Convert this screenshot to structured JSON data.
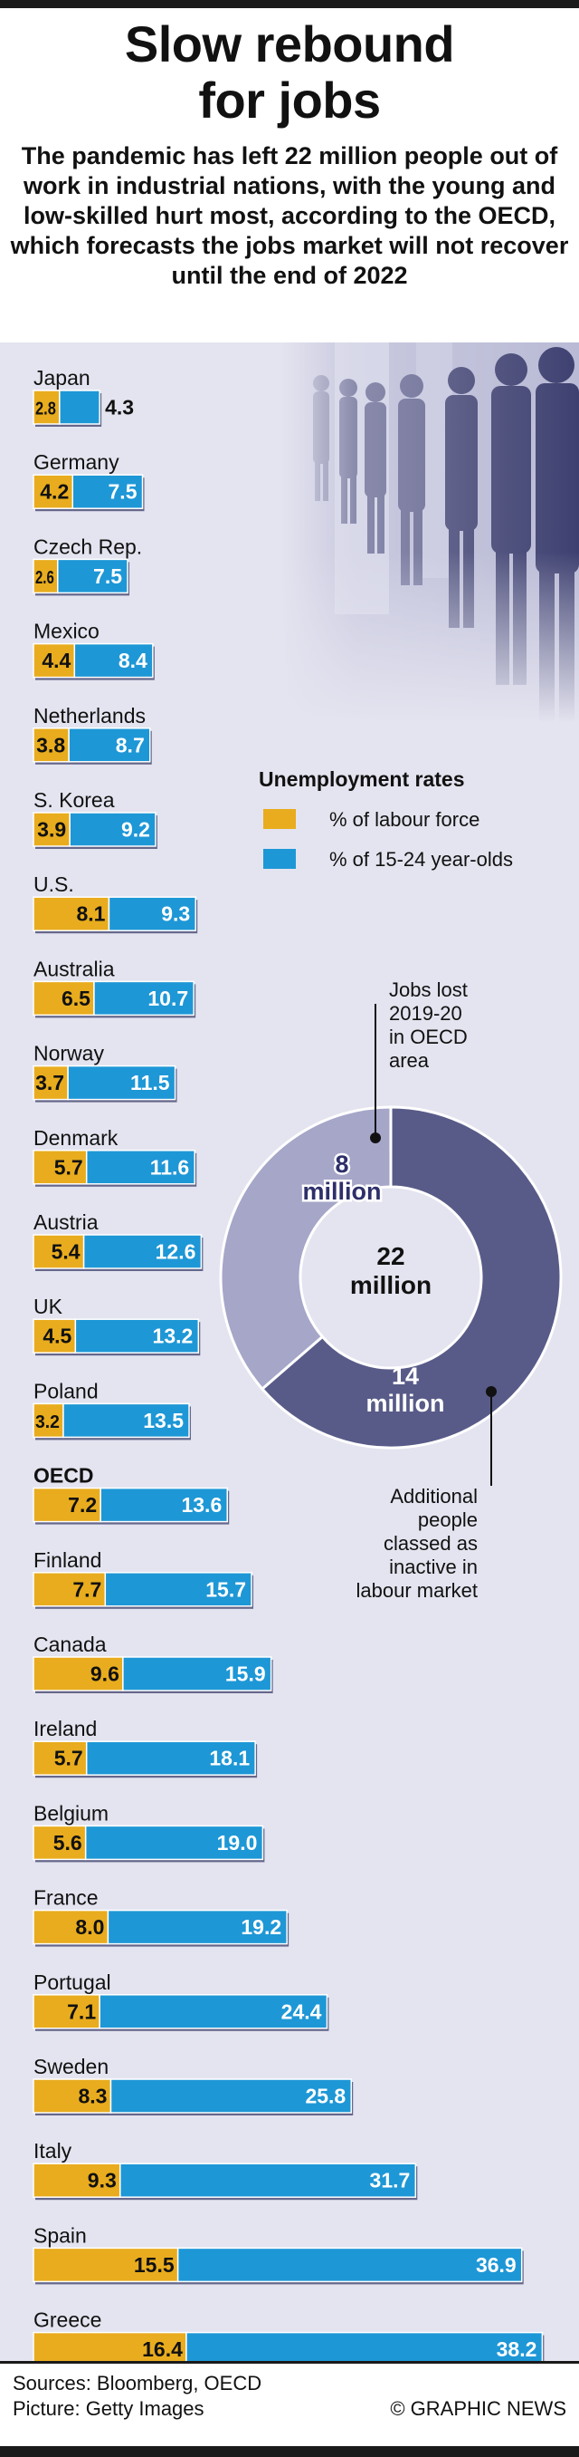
{
  "header": {
    "title_line1": "Slow rebound",
    "title_line2": "for jobs",
    "subtitle": "The pandemic has left 22 million people out of work in industrial nations, with the young and low-skilled hurt most, according to the OECD, which forecasts the jobs market will not recover until the end of 2022"
  },
  "colors": {
    "labour": "#e8ac1e",
    "youth": "#1e97d6",
    "panel": "#e4e4f0",
    "donut_dark": "#585b88",
    "donut_light": "#a5a6c8"
  },
  "chart_data": [
    {
      "type": "bar",
      "title": "Unemployment rates",
      "categories": [
        "Japan",
        "Germany",
        "Czech Rep.",
        "Mexico",
        "Netherlands",
        "S. Korea",
        "U.S.",
        "Australia",
        "Norway",
        "Denmark",
        "Austria",
        "UK",
        "Poland",
        "OECD",
        "Finland",
        "Canada",
        "Ireland",
        "Belgium",
        "France",
        "Portugal",
        "Sweden",
        "Italy",
        "Spain",
        "Greece"
      ],
      "series": [
        {
          "name": "% of labour force",
          "values": [
            2.8,
            4.2,
            2.6,
            4.4,
            3.8,
            3.9,
            8.1,
            6.5,
            3.7,
            5.7,
            5.4,
            4.5,
            3.2,
            7.2,
            7.7,
            9.6,
            5.7,
            5.6,
            8.0,
            7.1,
            8.3,
            9.3,
            15.5,
            16.4
          ]
        },
        {
          "name": "% of 15-24 year-olds",
          "values": [
            4.3,
            7.5,
            7.5,
            8.4,
            8.7,
            9.2,
            9.3,
            10.7,
            11.5,
            11.6,
            12.6,
            13.2,
            13.5,
            13.6,
            15.7,
            15.9,
            18.1,
            19.0,
            19.2,
            24.4,
            25.8,
            31.7,
            36.9,
            38.2
          ]
        }
      ],
      "legend_title": "Unemployment rates",
      "legend": [
        "% of labour force",
        "% of 15-24 year-olds"
      ],
      "legend_placement": "top-right",
      "emphasized_category": "OECD",
      "stacked": true
    },
    {
      "type": "pie",
      "title": "Jobs lost 2019-20 in OECD area",
      "center_label_line1": "22",
      "center_label_line2": "million",
      "slices": [
        {
          "name": "Jobs lost 2019-20 in OECD area",
          "value": 8,
          "value_line1": "8",
          "value_line2": "million",
          "annotation_lines": [
            "Jobs lost",
            "2019-20",
            "in OECD",
            "area"
          ]
        },
        {
          "name": "Additional people classed as inactive in labour market",
          "value": 14,
          "value_line1": "14",
          "value_line2": "million",
          "annotation_lines": [
            "Additional",
            "people",
            "classed as",
            "inactive in",
            "labour market"
          ]
        }
      ]
    }
  ],
  "footer": {
    "sources": "Sources: Bloomberg, OECD",
    "picture": "Picture: Getty Images",
    "credit": "© GRAPHIC NEWS"
  }
}
